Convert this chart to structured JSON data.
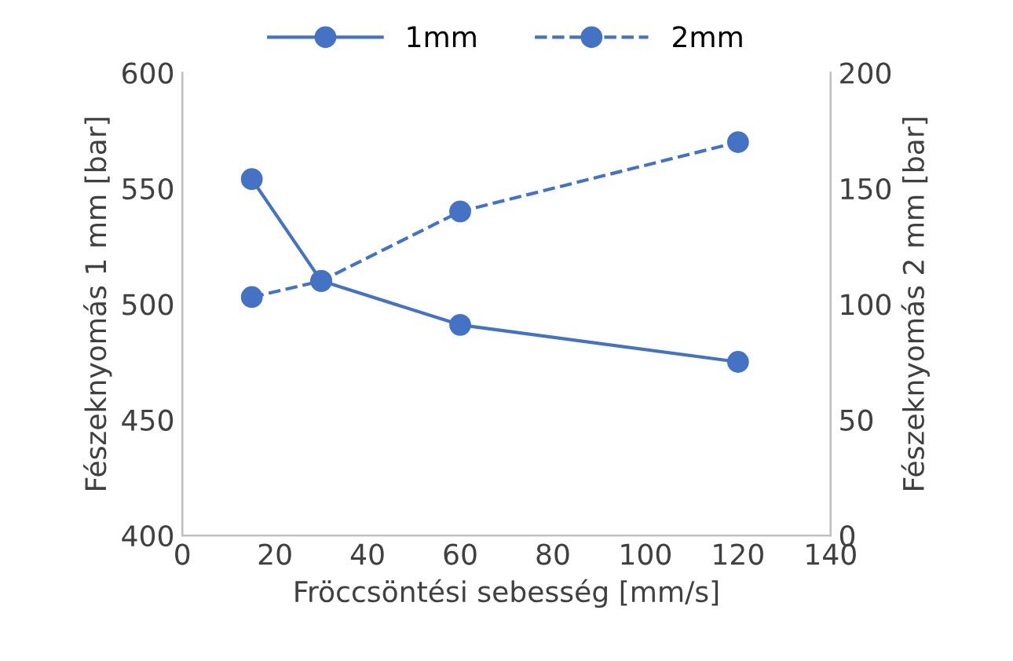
{
  "chart_data": {
    "type": "line",
    "xlabel": "Fröccsöntési sebesség [mm/s]",
    "ylabel": "Fészeknyomás 1 mm [bar]",
    "y2label": "Fészeknyomás 2 mm [bar]",
    "x": [
      15,
      30,
      60,
      120
    ],
    "series": [
      {
        "name": "1mm",
        "color": "#4472c4",
        "values": [
          554,
          510,
          491,
          475
        ],
        "line_style": "solid"
      },
      {
        "name": "2mm",
        "color": "#4472c4",
        "values": [
          103,
          110,
          140,
          170
        ],
        "line_style": "dashed",
        "axis": "y2"
      }
    ],
    "xlim": [
      0,
      140
    ],
    "xticks": [
      0,
      20,
      40,
      60,
      80,
      100,
      120,
      140
    ],
    "ylim": [
      400,
      600
    ],
    "yticks": [
      400,
      450,
      500,
      550,
      600
    ],
    "y2lim": [
      0,
      200
    ],
    "y2ticks": [
      0,
      50,
      100,
      150,
      200
    ],
    "marker": "circle",
    "legend": "top",
    "grid": false
  }
}
